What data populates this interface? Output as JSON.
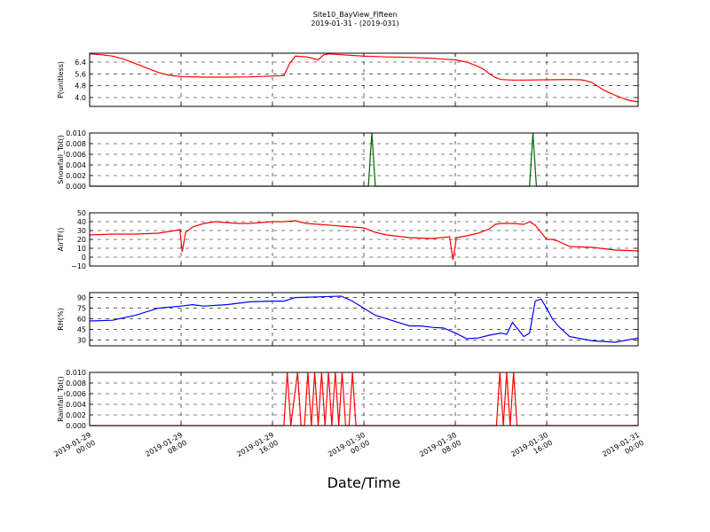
{
  "title": "Site10_BayView_Fifteen",
  "subtitle": "2019-01-31 - (2019-031)",
  "xlabel": "Date/Time",
  "x_ticks": [
    {
      "t": 0,
      "line1": "2019-01-29",
      "line2": "00:00"
    },
    {
      "t": 8,
      "line1": "2019-01-29",
      "line2": "08:00"
    },
    {
      "t": 16,
      "line1": "2019-01-29",
      "line2": "16:00"
    },
    {
      "t": 24,
      "line1": "2019-01-30",
      "line2": "00:00"
    },
    {
      "t": 32,
      "line1": "2019-01-30",
      "line2": "08:00"
    },
    {
      "t": 40,
      "line1": "2019-01-30",
      "line2": "16:00"
    },
    {
      "t": 48,
      "line1": "2019-01-31",
      "line2": "00:00"
    }
  ],
  "chart_data": [
    {
      "type": "line",
      "ylabel": "P(unitless)",
      "color": "#ff0000",
      "ylim": [
        3.4,
        7.0
      ],
      "yticks": [
        4.0,
        4.8,
        5.6,
        6.4
      ],
      "ytick_labels": [
        "4.0",
        "4.8",
        "5.6",
        "6.4"
      ],
      "x": [
        0,
        1,
        2,
        3,
        4,
        5,
        6,
        7,
        8,
        10,
        12,
        14,
        16,
        17,
        17.5,
        18,
        19,
        20,
        20.5,
        21,
        22,
        23,
        24,
        26,
        28,
        30,
        31,
        32,
        33,
        34,
        34.5,
        35,
        35.5,
        36,
        37,
        38,
        40,
        42,
        43,
        43.5,
        44,
        44.3,
        45,
        46,
        47,
        48
      ],
      "y": [
        6.95,
        6.9,
        6.8,
        6.6,
        6.3,
        6.0,
        5.7,
        5.5,
        5.42,
        5.38,
        5.38,
        5.4,
        5.45,
        5.48,
        6.3,
        6.8,
        6.75,
        6.55,
        6.9,
        6.95,
        6.9,
        6.85,
        6.8,
        6.75,
        6.72,
        6.65,
        6.6,
        6.55,
        6.4,
        6.1,
        5.9,
        5.6,
        5.35,
        5.22,
        5.18,
        5.18,
        5.2,
        5.22,
        5.2,
        5.12,
        5.0,
        4.85,
        4.5,
        4.15,
        3.85,
        3.7
      ]
    },
    {
      "type": "line",
      "ylabel": "Snowfall_Tot()",
      "color": "#006400",
      "ylim": [
        0,
        0.01
      ],
      "yticks": [
        0,
        0.002,
        0.004,
        0.006,
        0.008,
        0.01
      ],
      "ytick_labels": [
        "0.000",
        "0.002",
        "0.004",
        "0.006",
        "0.008",
        "0.010"
      ],
      "x": [
        0,
        24.4,
        24.7,
        25.0,
        38.5,
        38.8,
        39.1,
        48
      ],
      "y": [
        0,
        0,
        0.01,
        0,
        0,
        0.01,
        0,
        0
      ]
    },
    {
      "type": "line",
      "ylabel": "AirTF()",
      "color": "#ff0000",
      "ylim": [
        -10,
        50
      ],
      "yticks": [
        -10,
        0,
        10,
        20,
        30,
        40,
        50
      ],
      "ytick_labels": [
        "−10",
        "0",
        "10",
        "20",
        "30",
        "40",
        "50"
      ],
      "x": [
        0,
        2,
        4,
        6,
        7.5,
        7.9,
        8.1,
        8.4,
        9,
        10,
        11,
        12,
        13,
        14,
        15,
        16,
        17,
        18,
        19,
        20,
        22,
        24,
        25,
        26,
        28,
        30,
        31.5,
        31.8,
        32.1,
        33,
        34,
        35,
        35.5,
        36,
        37,
        38,
        38.5,
        39,
        39.5,
        40,
        40.5,
        41,
        42,
        44,
        46,
        48
      ],
      "y": [
        25,
        26,
        26,
        27,
        30,
        31,
        6,
        28,
        34,
        38,
        40,
        39,
        38,
        38,
        39,
        40,
        40,
        41,
        38,
        37,
        35,
        33,
        28,
        25,
        22,
        21,
        23,
        -3,
        22,
        24,
        27,
        32,
        37,
        38,
        38,
        37,
        40,
        36,
        28,
        20,
        20,
        18,
        12,
        11,
        8,
        7
      ]
    },
    {
      "type": "line",
      "ylabel": "RH(%)",
      "color": "#0000ff",
      "ylim": [
        22,
        97
      ],
      "yticks": [
        30,
        45,
        60,
        75,
        90
      ],
      "ytick_labels": [
        "30",
        "45",
        "60",
        "75",
        "90"
      ],
      "x": [
        0,
        2,
        4,
        6,
        8,
        9,
        10,
        12,
        14,
        16,
        17,
        18,
        20,
        22,
        23,
        24,
        25,
        26,
        27,
        28,
        29,
        30,
        31,
        32,
        33,
        34,
        35,
        36,
        36.5,
        37,
        38,
        38.5,
        39,
        39.5,
        40,
        40.5,
        41,
        42,
        44,
        46,
        48
      ],
      "y": [
        57,
        58,
        65,
        75,
        78,
        80,
        78,
        80,
        84,
        85,
        85,
        90,
        91,
        92,
        85,
        75,
        65,
        60,
        55,
        50,
        50,
        48,
        47,
        40,
        32,
        33,
        37,
        40,
        38,
        55,
        35,
        40,
        85,
        88,
        75,
        60,
        50,
        35,
        29,
        27,
        33
      ]
    },
    {
      "type": "line",
      "ylabel": "Rainfall_Tot()",
      "color": "#ff0000",
      "ylim": [
        0,
        0.01
      ],
      "yticks": [
        0,
        0.002,
        0.004,
        0.006,
        0.008,
        0.01
      ],
      "ytick_labels": [
        "0.000",
        "0.002",
        "0.004",
        "0.006",
        "0.008",
        "0.010"
      ],
      "x": [
        0,
        17.0,
        17.3,
        17.6,
        18.2,
        18.5,
        18.8,
        19.1,
        19.4,
        19.7,
        20.0,
        20.3,
        20.6,
        20.9,
        21.2,
        21.5,
        21.8,
        22.1,
        22.4,
        22.7,
        23.0,
        23.3,
        23.6,
        23.9,
        35.6,
        35.9,
        36.2,
        36.5,
        36.8,
        37.1,
        37.4,
        48
      ],
      "y": [
        0,
        0,
        0.01,
        0,
        0.01,
        0,
        0,
        0.01,
        0,
        0.01,
        0,
        0.01,
        0,
        0.01,
        0,
        0.01,
        0,
        0.01,
        0,
        0,
        0.01,
        0,
        0,
        0,
        0,
        0.01,
        0,
        0.01,
        0,
        0.01,
        0,
        0
      ]
    }
  ]
}
